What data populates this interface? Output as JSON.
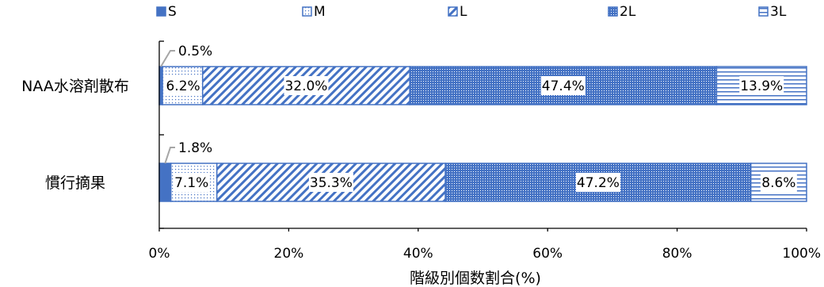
{
  "chart_data": {
    "type": "bar",
    "orientation": "horizontal",
    "stacked": true,
    "normalized": true,
    "categories": [
      "NAA水溶剤散布",
      "慣行摘果"
    ],
    "series": [
      {
        "name": "S",
        "values": [
          0.5,
          1.8
        ],
        "pattern": "solid"
      },
      {
        "name": "M",
        "values": [
          6.2,
          7.1
        ],
        "pattern": "dotted"
      },
      {
        "name": "L",
        "values": [
          32.0,
          35.3
        ],
        "pattern": "diagonal"
      },
      {
        "name": "2L",
        "values": [
          47.4,
          47.2
        ],
        "pattern": "dense-dots"
      },
      {
        "name": "3L",
        "values": [
          13.9,
          8.6
        ],
        "pattern": "horizontal-lines"
      }
    ],
    "data_labels": [
      [
        "0.5%",
        "6.2%",
        "32.0%",
        "47.4%",
        "13.9%"
      ],
      [
        "1.8%",
        "7.1%",
        "35.3%",
        "47.2%",
        "8.6%"
      ]
    ],
    "x_ticks": [
      "0%",
      "20%",
      "40%",
      "60%",
      "80%",
      "100%"
    ],
    "xlabel": "階級別個数割合(%)",
    "ylabel": "",
    "xlim": [
      0,
      100
    ],
    "grid": false,
    "legend_position": "top",
    "colors": {
      "bar": "#4472C4",
      "axis": "#000000",
      "leader": "#A6A6A6"
    }
  }
}
